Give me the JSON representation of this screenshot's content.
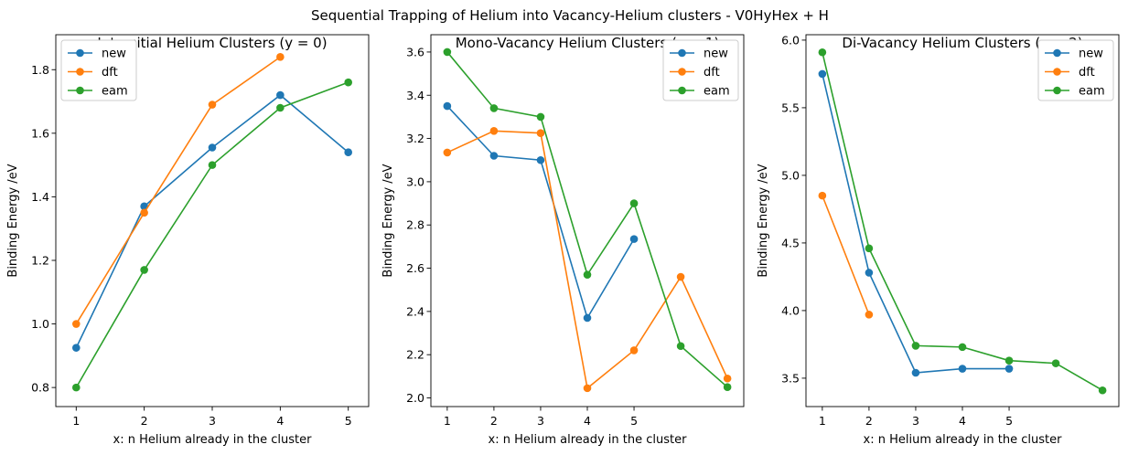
{
  "suptitle": "Sequential Trapping of Helium into Vacancy-Helium clusters - V0HyHex + H",
  "colors": {
    "new": "#1f77b4",
    "dft": "#ff7f0e",
    "eam": "#2ca02c"
  },
  "legend_labels": [
    "new",
    "dft",
    "eam"
  ],
  "chart_data": [
    {
      "type": "line",
      "title": "Intersitial Helium Clusters (y = 0)",
      "xlabel": "x: n Helium already in the cluster",
      "ylabel": "Binding Energy /eV",
      "xlim": [
        0.7,
        5.3
      ],
      "ylim": [
        0.74,
        1.91
      ],
      "xticks": [
        1,
        2,
        3,
        4,
        5
      ],
      "yticks": [
        0.8,
        1.0,
        1.2,
        1.4,
        1.6,
        1.8
      ],
      "ytick_labels": [
        "0.8",
        "1.0",
        "1.2",
        "1.4",
        "1.6",
        "1.8"
      ],
      "legend": "upper left",
      "series": [
        {
          "name": "new",
          "x": [
            1,
            2,
            3,
            4,
            5
          ],
          "y": [
            0.925,
            1.37,
            1.555,
            1.72,
            1.54
          ]
        },
        {
          "name": "dft",
          "x": [
            1,
            2,
            3,
            4
          ],
          "y": [
            1.0,
            1.35,
            1.69,
            1.84
          ]
        },
        {
          "name": "eam",
          "x": [
            1,
            2,
            3,
            4,
            5
          ],
          "y": [
            0.8,
            1.17,
            1.5,
            1.68,
            1.76
          ]
        }
      ]
    },
    {
      "type": "line",
      "title": "Mono-Vacancy Helium Clusters (y = 1)",
      "xlabel": "x: n Helium already in the cluster",
      "ylabel": "Binding Energy /eV",
      "xlim": [
        0.65,
        7.35
      ],
      "ylim": [
        1.96,
        3.68
      ],
      "xticks": [
        1,
        2,
        3,
        4,
        5
      ],
      "yticks": [
        2.0,
        2.2,
        2.4,
        2.6,
        2.8,
        3.0,
        3.2,
        3.4,
        3.6
      ],
      "ytick_labels": [
        "2.0",
        "2.2",
        "2.4",
        "2.6",
        "2.8",
        "3.0",
        "3.2",
        "3.4",
        "3.6"
      ],
      "legend": "upper right",
      "series": [
        {
          "name": "new",
          "x": [
            1,
            2,
            3,
            4,
            5
          ],
          "y": [
            3.35,
            3.12,
            3.1,
            2.37,
            2.735
          ]
        },
        {
          "name": "dft",
          "x": [
            1,
            2,
            3,
            4,
            5,
            6,
            7
          ],
          "y": [
            3.135,
            3.235,
            3.225,
            2.045,
            2.22,
            2.56,
            2.09
          ]
        },
        {
          "name": "eam",
          "x": [
            1,
            2,
            3,
            4,
            5,
            6,
            7
          ],
          "y": [
            3.6,
            3.34,
            3.3,
            2.57,
            2.9,
            2.24,
            2.05
          ]
        }
      ]
    },
    {
      "type": "line",
      "title": "Di-Vacancy Helium Clusters (y = 2)",
      "xlabel": "x: n Helium already in the cluster",
      "ylabel": "Binding Energy /eV",
      "xlim": [
        0.65,
        7.35
      ],
      "ylim": [
        3.29,
        6.04
      ],
      "xticks": [
        1,
        2,
        3,
        4,
        5
      ],
      "yticks": [
        3.5,
        4.0,
        4.5,
        5.0,
        5.5,
        6.0
      ],
      "ytick_labels": [
        "3.5",
        "4.0",
        "4.5",
        "5.0",
        "5.5",
        "6.0"
      ],
      "legend": "upper right",
      "series": [
        {
          "name": "new",
          "x": [
            1,
            2,
            3,
            4,
            5
          ],
          "y": [
            5.75,
            4.28,
            3.54,
            3.57,
            3.57
          ]
        },
        {
          "name": "dft",
          "x": [
            1,
            2
          ],
          "y": [
            4.85,
            3.97
          ]
        },
        {
          "name": "eam",
          "x": [
            1,
            2,
            3,
            4,
            5,
            6,
            7
          ],
          "y": [
            5.91,
            4.46,
            3.74,
            3.73,
            3.63,
            3.61,
            3.41
          ]
        }
      ]
    }
  ]
}
